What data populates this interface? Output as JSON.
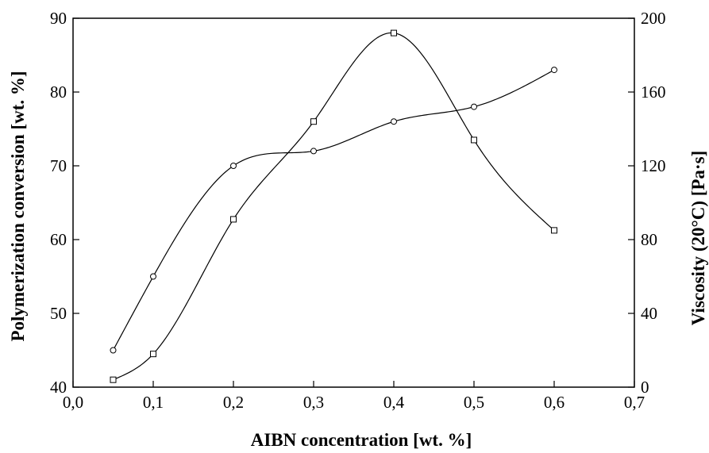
{
  "chart_data": {
    "type": "scatter",
    "title": "",
    "xlabel": "AIBN concentration [wt. %]",
    "ylabel": "Polymerization conversion [wt. %]",
    "y2label": "Viscosity (20°C) [Pa·s]",
    "xlim": [
      0.0,
      0.7
    ],
    "ylim": [
      40,
      90
    ],
    "y2lim": [
      0,
      200
    ],
    "x_tick_labels": [
      "0,0",
      "0,1",
      "0,2",
      "0,3",
      "0,4",
      "0,5",
      "0,6",
      "0,7"
    ],
    "y_tick_labels": [
      "40",
      "50",
      "60",
      "70",
      "80",
      "90"
    ],
    "y2_tick_labels": [
      "0",
      "40",
      "80",
      "120",
      "160",
      "200"
    ],
    "grid": false,
    "legend": "none",
    "series": [
      {
        "axis": "left",
        "marker": "circle",
        "fitted_curve": true,
        "x": [
          0.05,
          0.1,
          0.2,
          0.3,
          0.4,
          0.5,
          0.6
        ],
        "y": [
          45,
          55,
          70,
          72,
          76,
          78,
          83
        ]
      },
      {
        "axis": "right",
        "marker": "square",
        "fitted_curve": true,
        "x": [
          0.05,
          0.1,
          0.2,
          0.3,
          0.4,
          0.5,
          0.6
        ],
        "y": [
          4,
          18,
          91,
          144,
          192,
          134,
          85
        ]
      }
    ]
  }
}
